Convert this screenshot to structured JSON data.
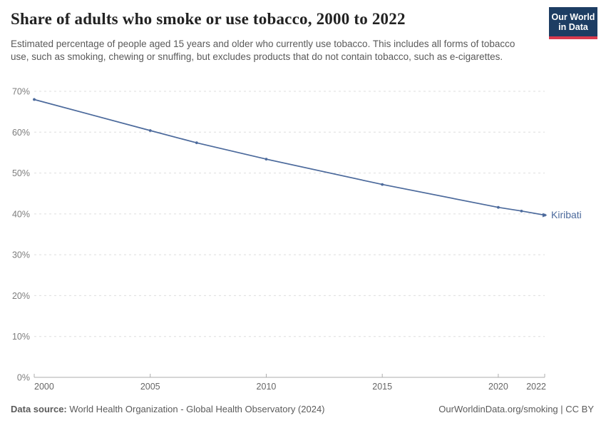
{
  "header": {
    "title": "Share of adults who smoke or use tobacco, 2000 to 2022",
    "subtitle": "Estimated percentage of people aged 15 years and older who currently use tobacco. This includes all forms of tobacco use, such as smoking, chewing or snuffing, but excludes products that do not contain tobacco, such as e-cigarettes.",
    "logo": {
      "line1": "Our World",
      "line2": "in Data",
      "bg": "#1d3d63",
      "accent": "#d93a4e"
    }
  },
  "chart_data": {
    "type": "line",
    "title": "Share of adults who smoke or use tobacco, 2000 to 2022",
    "xlabel": "",
    "ylabel": "",
    "xlim": [
      2000,
      2022
    ],
    "ylim": [
      0,
      70
    ],
    "x_ticks": [
      2000,
      2005,
      2010,
      2015,
      2020,
      2022
    ],
    "y_ticks": [
      0,
      10,
      20,
      30,
      40,
      50,
      60,
      70
    ],
    "y_tick_suffix": "%",
    "grid": "dashed-horizontal",
    "legend_position": "end-of-line-label",
    "end_label": "Kiribati",
    "series": [
      {
        "name": "Kiribati",
        "color": "#4c6a9c",
        "points": [
          [
            2000,
            68.0
          ],
          [
            2005,
            60.4
          ],
          [
            2007,
            57.4
          ],
          [
            2010,
            53.4
          ],
          [
            2015,
            47.2
          ],
          [
            2020,
            41.6
          ],
          [
            2021,
            40.7
          ],
          [
            2022,
            39.7
          ]
        ]
      }
    ]
  },
  "footer": {
    "datasource_label": "Data source:",
    "datasource_value": " World Health Organization - Global Health Observatory (2024)",
    "link": "OurWorldinData.org/smoking | CC BY"
  }
}
